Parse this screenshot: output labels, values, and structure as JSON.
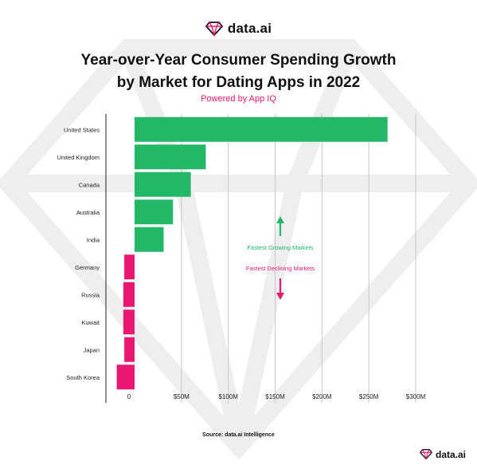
{
  "brand": {
    "name": "data.ai",
    "icon": "diamond-logo-icon",
    "accent": "#e8176f"
  },
  "title_line1": "Year-over-Year Consumer Spending Growth",
  "title_line2": "by Market for Dating Apps in 2022",
  "subtitle": "Powered by App IQ",
  "source": "Source: data.ai Intelligence",
  "chart_data": {
    "type": "bar",
    "orientation": "horizontal",
    "categories": [
      "United States",
      "United Kingdom",
      "Canada",
      "Australia",
      "India",
      "Germany",
      "Russia",
      "Kuwait",
      "Japan",
      "South Korea"
    ],
    "values": [
      270,
      76,
      60,
      41,
      31,
      -11,
      -12,
      -12,
      -11,
      -19
    ],
    "x_tick_labels": [
      "0",
      "$50M",
      "$100M",
      "$150M",
      "$200M",
      "$250M",
      "$300M"
    ],
    "x_ticks": [
      0,
      50,
      100,
      150,
      200,
      250,
      300
    ],
    "xlim": [
      -20,
      310
    ],
    "grid": true,
    "positive_color": "#22b868",
    "negative_color": "#e8176f",
    "annotations": {
      "growing": "Fastest Growing Markets",
      "declining": "Fastest Declining Markets"
    }
  }
}
